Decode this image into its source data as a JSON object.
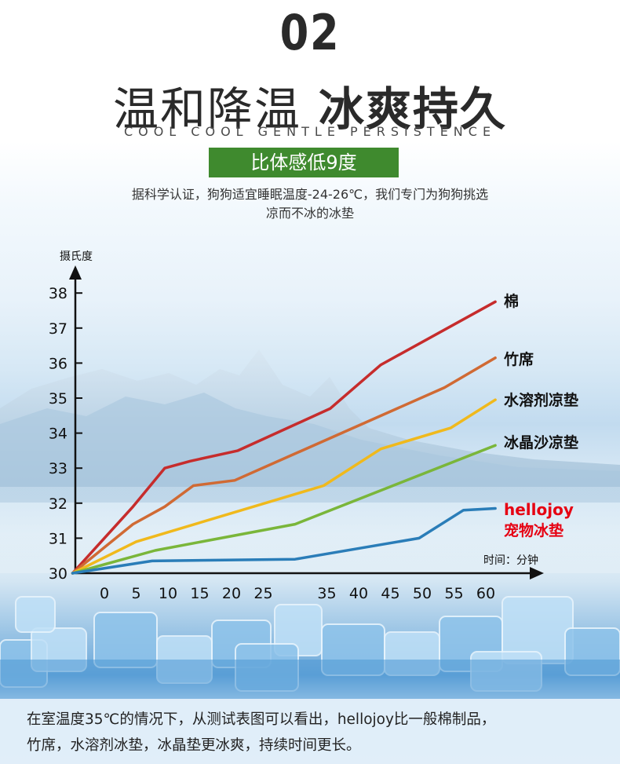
{
  "header": {
    "number": "02",
    "title_part1": "温和降温",
    "title_part2": "冰爽持久",
    "subtitle": "COOL COOL GENTLE PERSISTENCE",
    "badge": "比体感低9度",
    "desc_line1": "据科学认证，狗狗适宜睡眠温度-24-26℃，我们专门为狗狗挑选",
    "desc_line2": "凉而不冰的冰垫"
  },
  "colors": {
    "cotton": "#c62c2c",
    "bamboo": "#d06a34",
    "water_gel": "#f0b91c",
    "ice_sand": "#7ab63a",
    "hellojoy": "#2a7db8",
    "badge": "#3f8a2e",
    "hellojoy_label": "#e60012"
  },
  "chart_data": {
    "type": "line",
    "title": "",
    "xlabel": "时间：分钟",
    "ylabel": "摄氏度",
    "x_ticks": [
      0,
      5,
      10,
      15,
      20,
      25,
      35,
      40,
      45,
      50,
      55,
      60
    ],
    "y_ticks": [
      30,
      31,
      32,
      33,
      34,
      35,
      36,
      37,
      38
    ],
    "ylim": [
      30,
      38
    ],
    "grid": false,
    "series": [
      {
        "name": "棉",
        "color_key": "cotton",
        "points": [
          [
            -5,
            30.0
          ],
          [
            4.5,
            31.9
          ],
          [
            9.5,
            33.0
          ],
          [
            13.5,
            33.2
          ],
          [
            21,
            33.5
          ],
          [
            35.5,
            34.7
          ],
          [
            43.5,
            35.95
          ],
          [
            61.5,
            37.75
          ]
        ]
      },
      {
        "name": "竹席",
        "color_key": "bamboo",
        "points": [
          [
            -5,
            30.0
          ],
          [
            4.5,
            31.4
          ],
          [
            9.5,
            31.9
          ],
          [
            14,
            32.5
          ],
          [
            20.5,
            32.65
          ],
          [
            53.5,
            35.3
          ],
          [
            61.5,
            36.15
          ]
        ]
      },
      {
        "name": "水溶剂凉垫",
        "color_key": "water_gel",
        "points": [
          [
            -5,
            30.0
          ],
          [
            5,
            30.9
          ],
          [
            34.5,
            32.5
          ],
          [
            43.5,
            33.55
          ],
          [
            54.5,
            34.15
          ],
          [
            61.5,
            34.95
          ]
        ]
      },
      {
        "name": "冰晶沙凉垫",
        "color_key": "ice_sand",
        "points": [
          [
            -5,
            30.0
          ],
          [
            8,
            30.65
          ],
          [
            30,
            31.4
          ],
          [
            61.5,
            33.65
          ]
        ]
      },
      {
        "name": "hellojoy宠物冰垫",
        "color_key": "hellojoy",
        "points": [
          [
            -5,
            30.0
          ],
          [
            7.5,
            30.35
          ],
          [
            30,
            30.4
          ],
          [
            49.5,
            31.0
          ],
          [
            56.5,
            31.8
          ],
          [
            61.5,
            31.85
          ]
        ]
      }
    ],
    "legend": [
      {
        "text": "棉"
      },
      {
        "text": "竹席"
      },
      {
        "text": "水溶剂凉垫"
      },
      {
        "text": "冰晶沙凉垫"
      },
      {
        "text": "hellojoy",
        "text2": "宠物冰垫"
      }
    ]
  },
  "footer": {
    "line1": "在室温度35℃的情况下，从测试表图可以看出，hellojoy比一般棉制品，",
    "line2": "竹席，水溶剂冰垫，冰晶垫更冰爽，持续时间更长。"
  }
}
